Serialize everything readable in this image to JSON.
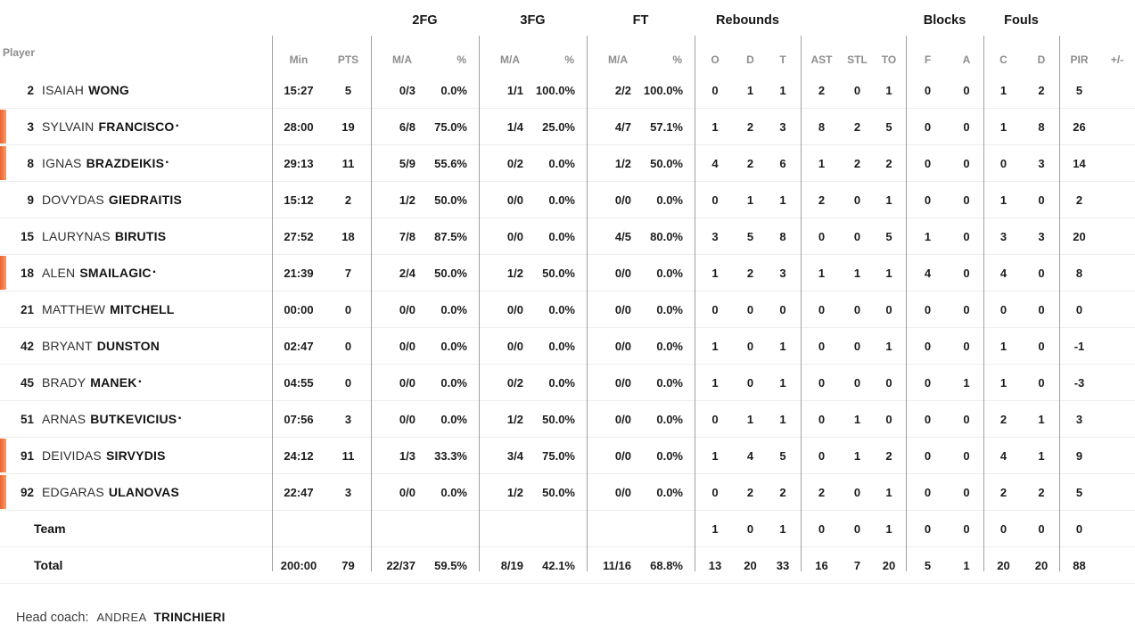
{
  "table": {
    "player_column_label": "Player",
    "starter_indicator": "·",
    "group_headers": {
      "fg2": "2FG",
      "fg3": "3FG",
      "ft": "FT",
      "rebounds": "Rebounds",
      "blocks": "Blocks",
      "fouls": "Fouls"
    },
    "sub_headers": {
      "min": "Min",
      "pts": "PTS",
      "ma": "M/A",
      "pct": "%",
      "reb_o": "O",
      "reb_d": "D",
      "reb_t": "T",
      "ast": "AST",
      "stl": "STL",
      "to": "TO",
      "blk_f": "F",
      "blk_a": "A",
      "foul_c": "C",
      "foul_d": "D",
      "pir": "PIR",
      "plus_minus": "+/-"
    }
  },
  "players": [
    {
      "number": "2",
      "first": "ISAIAH",
      "last": "WONG",
      "starter_dot": false,
      "on_court": false,
      "min": "15:27",
      "pts": "5",
      "fg2_ma": "0/3",
      "fg2_pct": "0.0%",
      "fg3_ma": "1/1",
      "fg3_pct": "100.0%",
      "ft_ma": "2/2",
      "ft_pct": "100.0%",
      "reb_o": "0",
      "reb_d": "1",
      "reb_t": "1",
      "ast": "2",
      "stl": "0",
      "to": "1",
      "blk_f": "0",
      "blk_a": "0",
      "foul_c": "1",
      "foul_d": "2",
      "pir": "5",
      "plus_minus": ""
    },
    {
      "number": "3",
      "first": "SYLVAIN",
      "last": "FRANCISCO",
      "starter_dot": true,
      "on_court": true,
      "min": "28:00",
      "pts": "19",
      "fg2_ma": "6/8",
      "fg2_pct": "75.0%",
      "fg3_ma": "1/4",
      "fg3_pct": "25.0%",
      "ft_ma": "4/7",
      "ft_pct": "57.1%",
      "reb_o": "1",
      "reb_d": "2",
      "reb_t": "3",
      "ast": "8",
      "stl": "2",
      "to": "5",
      "blk_f": "0",
      "blk_a": "0",
      "foul_c": "1",
      "foul_d": "8",
      "pir": "26",
      "plus_minus": ""
    },
    {
      "number": "8",
      "first": "IGNAS",
      "last": "BRAZDEIKIS",
      "starter_dot": true,
      "on_court": true,
      "min": "29:13",
      "pts": "11",
      "fg2_ma": "5/9",
      "fg2_pct": "55.6%",
      "fg3_ma": "0/2",
      "fg3_pct": "0.0%",
      "ft_ma": "1/2",
      "ft_pct": "50.0%",
      "reb_o": "4",
      "reb_d": "2",
      "reb_t": "6",
      "ast": "1",
      "stl": "2",
      "to": "2",
      "blk_f": "0",
      "blk_a": "0",
      "foul_c": "0",
      "foul_d": "3",
      "pir": "14",
      "plus_minus": ""
    },
    {
      "number": "9",
      "first": "DOVYDAS",
      "last": "GIEDRAITIS",
      "starter_dot": false,
      "on_court": false,
      "min": "15:12",
      "pts": "2",
      "fg2_ma": "1/2",
      "fg2_pct": "50.0%",
      "fg3_ma": "0/0",
      "fg3_pct": "0.0%",
      "ft_ma": "0/0",
      "ft_pct": "0.0%",
      "reb_o": "0",
      "reb_d": "1",
      "reb_t": "1",
      "ast": "2",
      "stl": "0",
      "to": "1",
      "blk_f": "0",
      "blk_a": "0",
      "foul_c": "1",
      "foul_d": "0",
      "pir": "2",
      "plus_minus": ""
    },
    {
      "number": "15",
      "first": "LAURYNAS",
      "last": "BIRUTIS",
      "starter_dot": false,
      "on_court": false,
      "min": "27:52",
      "pts": "18",
      "fg2_ma": "7/8",
      "fg2_pct": "87.5%",
      "fg3_ma": "0/0",
      "fg3_pct": "0.0%",
      "ft_ma": "4/5",
      "ft_pct": "80.0%",
      "reb_o": "3",
      "reb_d": "5",
      "reb_t": "8",
      "ast": "0",
      "stl": "0",
      "to": "5",
      "blk_f": "1",
      "blk_a": "0",
      "foul_c": "3",
      "foul_d": "3",
      "pir": "20",
      "plus_minus": ""
    },
    {
      "number": "18",
      "first": "ALEN",
      "last": "SMAILAGIC",
      "starter_dot": true,
      "on_court": true,
      "min": "21:39",
      "pts": "7",
      "fg2_ma": "2/4",
      "fg2_pct": "50.0%",
      "fg3_ma": "1/2",
      "fg3_pct": "50.0%",
      "ft_ma": "0/0",
      "ft_pct": "0.0%",
      "reb_o": "1",
      "reb_d": "2",
      "reb_t": "3",
      "ast": "1",
      "stl": "1",
      "to": "1",
      "blk_f": "4",
      "blk_a": "0",
      "foul_c": "4",
      "foul_d": "0",
      "pir": "8",
      "plus_minus": ""
    },
    {
      "number": "21",
      "first": "MATTHEW",
      "last": "MITCHELL",
      "starter_dot": false,
      "on_court": false,
      "min": "00:00",
      "pts": "0",
      "fg2_ma": "0/0",
      "fg2_pct": "0.0%",
      "fg3_ma": "0/0",
      "fg3_pct": "0.0%",
      "ft_ma": "0/0",
      "ft_pct": "0.0%",
      "reb_o": "0",
      "reb_d": "0",
      "reb_t": "0",
      "ast": "0",
      "stl": "0",
      "to": "0",
      "blk_f": "0",
      "blk_a": "0",
      "foul_c": "0",
      "foul_d": "0",
      "pir": "0",
      "plus_minus": ""
    },
    {
      "number": "42",
      "first": "BRYANT",
      "last": "DUNSTON",
      "starter_dot": false,
      "on_court": false,
      "min": "02:47",
      "pts": "0",
      "fg2_ma": "0/0",
      "fg2_pct": "0.0%",
      "fg3_ma": "0/0",
      "fg3_pct": "0.0%",
      "ft_ma": "0/0",
      "ft_pct": "0.0%",
      "reb_o": "1",
      "reb_d": "0",
      "reb_t": "1",
      "ast": "0",
      "stl": "0",
      "to": "1",
      "blk_f": "0",
      "blk_a": "0",
      "foul_c": "1",
      "foul_d": "0",
      "pir": "-1",
      "plus_minus": ""
    },
    {
      "number": "45",
      "first": "BRADY",
      "last": "MANEK",
      "starter_dot": true,
      "on_court": false,
      "min": "04:55",
      "pts": "0",
      "fg2_ma": "0/0",
      "fg2_pct": "0.0%",
      "fg3_ma": "0/2",
      "fg3_pct": "0.0%",
      "ft_ma": "0/0",
      "ft_pct": "0.0%",
      "reb_o": "1",
      "reb_d": "0",
      "reb_t": "1",
      "ast": "0",
      "stl": "0",
      "to": "0",
      "blk_f": "0",
      "blk_a": "1",
      "foul_c": "1",
      "foul_d": "0",
      "pir": "-3",
      "plus_minus": ""
    },
    {
      "number": "51",
      "first": "ARNAS",
      "last": "BUTKEVICIUS",
      "starter_dot": true,
      "on_court": false,
      "min": "07:56",
      "pts": "3",
      "fg2_ma": "0/0",
      "fg2_pct": "0.0%",
      "fg3_ma": "1/2",
      "fg3_pct": "50.0%",
      "ft_ma": "0/0",
      "ft_pct": "0.0%",
      "reb_o": "0",
      "reb_d": "1",
      "reb_t": "1",
      "ast": "0",
      "stl": "1",
      "to": "0",
      "blk_f": "0",
      "blk_a": "0",
      "foul_c": "2",
      "foul_d": "1",
      "pir": "3",
      "plus_minus": ""
    },
    {
      "number": "91",
      "first": "DEIVIDAS",
      "last": "SIRVYDIS",
      "starter_dot": false,
      "on_court": true,
      "min": "24:12",
      "pts": "11",
      "fg2_ma": "1/3",
      "fg2_pct": "33.3%",
      "fg3_ma": "3/4",
      "fg3_pct": "75.0%",
      "ft_ma": "0/0",
      "ft_pct": "0.0%",
      "reb_o": "1",
      "reb_d": "4",
      "reb_t": "5",
      "ast": "0",
      "stl": "1",
      "to": "2",
      "blk_f": "0",
      "blk_a": "0",
      "foul_c": "4",
      "foul_d": "1",
      "pir": "9",
      "plus_minus": ""
    },
    {
      "number": "92",
      "first": "EDGARAS",
      "last": "ULANOVAS",
      "starter_dot": false,
      "on_court": true,
      "min": "22:47",
      "pts": "3",
      "fg2_ma": "0/0",
      "fg2_pct": "0.0%",
      "fg3_ma": "1/2",
      "fg3_pct": "50.0%",
      "ft_ma": "0/0",
      "ft_pct": "0.0%",
      "reb_o": "0",
      "reb_d": "2",
      "reb_t": "2",
      "ast": "2",
      "stl": "0",
      "to": "1",
      "blk_f": "0",
      "blk_a": "0",
      "foul_c": "2",
      "foul_d": "2",
      "pir": "5",
      "plus_minus": ""
    }
  ],
  "team_row": {
    "label": "Team",
    "min": "",
    "pts": "",
    "fg2_ma": "",
    "fg2_pct": "",
    "fg3_ma": "",
    "fg3_pct": "",
    "ft_ma": "",
    "ft_pct": "",
    "reb_o": "1",
    "reb_d": "0",
    "reb_t": "1",
    "ast": "0",
    "stl": "0",
    "to": "1",
    "blk_f": "0",
    "blk_a": "0",
    "foul_c": "0",
    "foul_d": "0",
    "pir": "0",
    "plus_minus": ""
  },
  "total_row": {
    "label": "Total",
    "min": "200:00",
    "pts": "79",
    "fg2_ma": "22/37",
    "fg2_pct": "59.5%",
    "fg3_ma": "8/19",
    "fg3_pct": "42.1%",
    "ft_ma": "11/16",
    "ft_pct": "68.8%",
    "reb_o": "13",
    "reb_d": "20",
    "reb_t": "33",
    "ast": "16",
    "stl": "7",
    "to": "20",
    "blk_f": "5",
    "blk_a": "1",
    "foul_c": "20",
    "foul_d": "20",
    "pir": "88",
    "plus_minus": ""
  },
  "footer": {
    "head_coach_label": "Head coach:",
    "coach_first_name": "ANDREA",
    "coach_last_name": "TRINCHIERI"
  },
  "colors": {
    "on_court_bar_start": "#ec6232",
    "on_court_bar_end": "#f89c63",
    "divider": "#a0a0a0",
    "row_line": "#ededed"
  }
}
